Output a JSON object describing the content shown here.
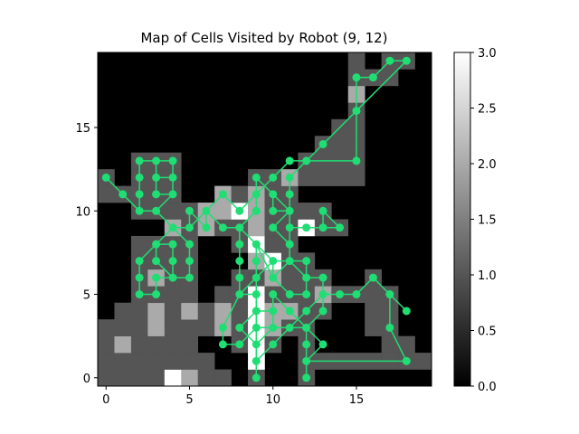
{
  "chart_data": {
    "type": "heatmap",
    "title": "Map of Cells Visited by Robot (9, 12)",
    "xlabel": "",
    "ylabel": "",
    "grid": false,
    "colormap": "gray",
    "grid_size": [
      20,
      20
    ],
    "xlim": [
      -0.5,
      19.5
    ],
    "ylim": [
      -0.5,
      19.5
    ],
    "x_ticks": [
      0,
      5,
      10,
      15
    ],
    "y_ticks": [
      0,
      5,
      10,
      15
    ],
    "x_tick_labels": [
      "0",
      "5",
      "10",
      "15"
    ],
    "y_tick_labels": [
      "0",
      "5",
      "10",
      "15"
    ],
    "colorbar": {
      "range": [
        0.0,
        3.0
      ],
      "ticks": [
        0.0,
        0.5,
        1.0,
        1.5,
        2.0,
        2.5,
        3.0
      ],
      "tick_labels": [
        "0.0",
        "0.5",
        "1.0",
        "1.5",
        "2.0",
        "2.5",
        "3.0"
      ]
    },
    "cells": [
      {
        "x": 0,
        "y": 0,
        "v": 1
      },
      {
        "x": 1,
        "y": 0,
        "v": 1
      },
      {
        "x": 2,
        "y": 0,
        "v": 1
      },
      {
        "x": 3,
        "y": 0,
        "v": 1
      },
      {
        "x": 4,
        "y": 0,
        "v": 3
      },
      {
        "x": 5,
        "y": 0,
        "v": 2
      },
      {
        "x": 6,
        "y": 0,
        "v": 1
      },
      {
        "x": 7,
        "y": 0,
        "v": 1
      },
      {
        "x": 9,
        "y": 0,
        "v": 1
      },
      {
        "x": 12,
        "y": 0,
        "v": 1
      },
      {
        "x": 0,
        "y": 1,
        "v": 1
      },
      {
        "x": 1,
        "y": 1,
        "v": 1
      },
      {
        "x": 2,
        "y": 1,
        "v": 1
      },
      {
        "x": 3,
        "y": 1,
        "v": 1
      },
      {
        "x": 4,
        "y": 1,
        "v": 1
      },
      {
        "x": 5,
        "y": 1,
        "v": 1
      },
      {
        "x": 6,
        "y": 1,
        "v": 1
      },
      {
        "x": 9,
        "y": 1,
        "v": 3
      },
      {
        "x": 12,
        "y": 1,
        "v": 1
      },
      {
        "x": 13,
        "y": 1,
        "v": 1
      },
      {
        "x": 14,
        "y": 1,
        "v": 1
      },
      {
        "x": 15,
        "y": 1,
        "v": 1
      },
      {
        "x": 16,
        "y": 1,
        "v": 1
      },
      {
        "x": 17,
        "y": 1,
        "v": 1
      },
      {
        "x": 18,
        "y": 1,
        "v": 1
      },
      {
        "x": 19,
        "y": 1,
        "v": 1
      },
      {
        "x": 0,
        "y": 2,
        "v": 1
      },
      {
        "x": 1,
        "y": 2,
        "v": 2
      },
      {
        "x": 2,
        "y": 2,
        "v": 1
      },
      {
        "x": 3,
        "y": 2,
        "v": 1
      },
      {
        "x": 4,
        "y": 2,
        "v": 1
      },
      {
        "x": 5,
        "y": 2,
        "v": 1
      },
      {
        "x": 8,
        "y": 2,
        "v": 1
      },
      {
        "x": 9,
        "y": 2,
        "v": 3
      },
      {
        "x": 10,
        "y": 2,
        "v": 1
      },
      {
        "x": 12,
        "y": 2,
        "v": 1
      },
      {
        "x": 17,
        "y": 2,
        "v": 1
      },
      {
        "x": 18,
        "y": 2,
        "v": 1
      },
      {
        "x": 0,
        "y": 3,
        "v": 1
      },
      {
        "x": 1,
        "y": 3,
        "v": 1
      },
      {
        "x": 2,
        "y": 3,
        "v": 1
      },
      {
        "x": 3,
        "y": 3,
        "v": 2
      },
      {
        "x": 4,
        "y": 3,
        "v": 1
      },
      {
        "x": 5,
        "y": 3,
        "v": 1
      },
      {
        "x": 6,
        "y": 3,
        "v": 1
      },
      {
        "x": 7,
        "y": 3,
        "v": 2
      },
      {
        "x": 8,
        "y": 3,
        "v": 1
      },
      {
        "x": 9,
        "y": 3,
        "v": 3
      },
      {
        "x": 10,
        "y": 3,
        "v": 2
      },
      {
        "x": 11,
        "y": 3,
        "v": 1
      },
      {
        "x": 12,
        "y": 3,
        "v": 1
      },
      {
        "x": 16,
        "y": 3,
        "v": 1
      },
      {
        "x": 17,
        "y": 3,
        "v": 1
      },
      {
        "x": 1,
        "y": 4,
        "v": 1
      },
      {
        "x": 2,
        "y": 4,
        "v": 1
      },
      {
        "x": 3,
        "y": 4,
        "v": 2
      },
      {
        "x": 4,
        "y": 4,
        "v": 1
      },
      {
        "x": 5,
        "y": 4,
        "v": 2
      },
      {
        "x": 6,
        "y": 4,
        "v": 1
      },
      {
        "x": 7,
        "y": 4,
        "v": 2
      },
      {
        "x": 8,
        "y": 4,
        "v": 1
      },
      {
        "x": 9,
        "y": 4,
        "v": 3
      },
      {
        "x": 10,
        "y": 4,
        "v": 2
      },
      {
        "x": 11,
        "y": 4,
        "v": 2
      },
      {
        "x": 12,
        "y": 4,
        "v": 1
      },
      {
        "x": 13,
        "y": 4,
        "v": 1
      },
      {
        "x": 16,
        "y": 4,
        "v": 1
      },
      {
        "x": 17,
        "y": 4,
        "v": 1
      },
      {
        "x": 2,
        "y": 5,
        "v": 1
      },
      {
        "x": 3,
        "y": 5,
        "v": 1
      },
      {
        "x": 4,
        "y": 5,
        "v": 1
      },
      {
        "x": 5,
        "y": 5,
        "v": 1
      },
      {
        "x": 7,
        "y": 5,
        "v": 1
      },
      {
        "x": 8,
        "y": 5,
        "v": 1
      },
      {
        "x": 9,
        "y": 5,
        "v": 3
      },
      {
        "x": 10,
        "y": 5,
        "v": 1
      },
      {
        "x": 11,
        "y": 5,
        "v": 1
      },
      {
        "x": 12,
        "y": 5,
        "v": 1
      },
      {
        "x": 13,
        "y": 5,
        "v": 2
      },
      {
        "x": 14,
        "y": 5,
        "v": 1
      },
      {
        "x": 15,
        "y": 5,
        "v": 1
      },
      {
        "x": 16,
        "y": 5,
        "v": 1
      },
      {
        "x": 17,
        "y": 5,
        "v": 1
      },
      {
        "x": 2,
        "y": 6,
        "v": 1
      },
      {
        "x": 3,
        "y": 6,
        "v": 2
      },
      {
        "x": 4,
        "y": 6,
        "v": 1
      },
      {
        "x": 5,
        "y": 6,
        "v": 1
      },
      {
        "x": 8,
        "y": 6,
        "v": 1
      },
      {
        "x": 9,
        "y": 6,
        "v": 1
      },
      {
        "x": 10,
        "y": 6,
        "v": 2
      },
      {
        "x": 11,
        "y": 6,
        "v": 1
      },
      {
        "x": 12,
        "y": 6,
        "v": 1
      },
      {
        "x": 13,
        "y": 6,
        "v": 1
      },
      {
        "x": 16,
        "y": 6,
        "v": 1
      },
      {
        "x": 2,
        "y": 7,
        "v": 1
      },
      {
        "x": 3,
        "y": 7,
        "v": 1
      },
      {
        "x": 4,
        "y": 7,
        "v": 1
      },
      {
        "x": 5,
        "y": 7,
        "v": 1
      },
      {
        "x": 9,
        "y": 7,
        "v": 2
      },
      {
        "x": 10,
        "y": 7,
        "v": 3
      },
      {
        "x": 11,
        "y": 7,
        "v": 1
      },
      {
        "x": 12,
        "y": 7,
        "v": 1
      },
      {
        "x": 2,
        "y": 8,
        "v": 1
      },
      {
        "x": 3,
        "y": 8,
        "v": 1
      },
      {
        "x": 4,
        "y": 8,
        "v": 1
      },
      {
        "x": 5,
        "y": 8,
        "v": 1
      },
      {
        "x": 8,
        "y": 8,
        "v": 1
      },
      {
        "x": 9,
        "y": 8,
        "v": 3
      },
      {
        "x": 10,
        "y": 8,
        "v": 1
      },
      {
        "x": 11,
        "y": 8,
        "v": 1
      },
      {
        "x": 4,
        "y": 9,
        "v": 2
      },
      {
        "x": 5,
        "y": 9,
        "v": 1
      },
      {
        "x": 6,
        "y": 9,
        "v": 2
      },
      {
        "x": 7,
        "y": 9,
        "v": 1
      },
      {
        "x": 8,
        "y": 9,
        "v": 1
      },
      {
        "x": 9,
        "y": 9,
        "v": 2
      },
      {
        "x": 10,
        "y": 9,
        "v": 1
      },
      {
        "x": 11,
        "y": 9,
        "v": 1
      },
      {
        "x": 12,
        "y": 9,
        "v": 3
      },
      {
        "x": 13,
        "y": 9,
        "v": 1
      },
      {
        "x": 14,
        "y": 9,
        "v": 1
      },
      {
        "x": 2,
        "y": 10,
        "v": 1
      },
      {
        "x": 3,
        "y": 10,
        "v": 1
      },
      {
        "x": 4,
        "y": 10,
        "v": 1
      },
      {
        "x": 5,
        "y": 10,
        "v": 1
      },
      {
        "x": 6,
        "y": 10,
        "v": 2
      },
      {
        "x": 7,
        "y": 10,
        "v": 2
      },
      {
        "x": 8,
        "y": 10,
        "v": 3
      },
      {
        "x": 9,
        "y": 10,
        "v": 2
      },
      {
        "x": 10,
        "y": 10,
        "v": 1
      },
      {
        "x": 11,
        "y": 10,
        "v": 1
      },
      {
        "x": 12,
        "y": 10,
        "v": 1
      },
      {
        "x": 13,
        "y": 10,
        "v": 1
      },
      {
        "x": 0,
        "y": 11,
        "v": 1
      },
      {
        "x": 1,
        "y": 11,
        "v": 1
      },
      {
        "x": 2,
        "y": 11,
        "v": 1
      },
      {
        "x": 3,
        "y": 11,
        "v": 1
      },
      {
        "x": 4,
        "y": 11,
        "v": 1
      },
      {
        "x": 7,
        "y": 11,
        "v": 2
      },
      {
        "x": 8,
        "y": 11,
        "v": 1
      },
      {
        "x": 9,
        "y": 11,
        "v": 2
      },
      {
        "x": 10,
        "y": 11,
        "v": 1
      },
      {
        "x": 11,
        "y": 11,
        "v": 1
      },
      {
        "x": 0,
        "y": 12,
        "v": 1
      },
      {
        "x": 2,
        "y": 12,
        "v": 1
      },
      {
        "x": 3,
        "y": 12,
        "v": 1
      },
      {
        "x": 4,
        "y": 12,
        "v": 1
      },
      {
        "x": 9,
        "y": 12,
        "v": 1
      },
      {
        "x": 10,
        "y": 12,
        "v": 1
      },
      {
        "x": 11,
        "y": 12,
        "v": 2
      },
      {
        "x": 12,
        "y": 12,
        "v": 1
      },
      {
        "x": 13,
        "y": 12,
        "v": 1
      },
      {
        "x": 14,
        "y": 12,
        "v": 1
      },
      {
        "x": 15,
        "y": 12,
        "v": 1
      },
      {
        "x": 2,
        "y": 13,
        "v": 1
      },
      {
        "x": 3,
        "y": 13,
        "v": 1
      },
      {
        "x": 4,
        "y": 13,
        "v": 1
      },
      {
        "x": 12,
        "y": 13,
        "v": 1
      },
      {
        "x": 13,
        "y": 13,
        "v": 1
      },
      {
        "x": 14,
        "y": 13,
        "v": 1
      },
      {
        "x": 15,
        "y": 13,
        "v": 1
      },
      {
        "x": 13,
        "y": 14,
        "v": 1
      },
      {
        "x": 14,
        "y": 14,
        "v": 1
      },
      {
        "x": 15,
        "y": 14,
        "v": 1
      },
      {
        "x": 14,
        "y": 15,
        "v": 1
      },
      {
        "x": 15,
        "y": 15,
        "v": 1
      },
      {
        "x": 15,
        "y": 16,
        "v": 1
      },
      {
        "x": 15,
        "y": 17,
        "v": 2
      },
      {
        "x": 15,
        "y": 18,
        "v": 1
      },
      {
        "x": 16,
        "y": 18,
        "v": 1
      },
      {
        "x": 17,
        "y": 18,
        "v": 1
      },
      {
        "x": 15,
        "y": 19,
        "v": 1
      },
      {
        "x": 17,
        "y": 19,
        "v": 1
      },
      {
        "x": 18,
        "y": 19,
        "v": 1
      }
    ],
    "path_color": "#1fde73",
    "path": [
      [
        9,
        12
      ],
      [
        10,
        11
      ],
      [
        11,
        10
      ],
      [
        10,
        9
      ],
      [
        11,
        8
      ],
      [
        11,
        7
      ],
      [
        10,
        6
      ],
      [
        10,
        7
      ],
      [
        9,
        8
      ],
      [
        9,
        7
      ],
      [
        9,
        6
      ],
      [
        8,
        5
      ],
      [
        9,
        5
      ],
      [
        9,
        4
      ],
      [
        8,
        3
      ],
      [
        9,
        2
      ],
      [
        10,
        3
      ],
      [
        10,
        4
      ],
      [
        10,
        5
      ],
      [
        11,
        4
      ],
      [
        12,
        3
      ],
      [
        12,
        2
      ],
      [
        12,
        1
      ],
      [
        12,
        0
      ],
      [
        12,
        1
      ],
      [
        12,
        2
      ],
      [
        12,
        3
      ],
      [
        13,
        4
      ],
      [
        13,
        5
      ],
      [
        14,
        5
      ],
      [
        15,
        5
      ],
      [
        16,
        6
      ],
      [
        17,
        5
      ],
      [
        18,
        4
      ],
      [
        17,
        5
      ],
      [
        17,
        3
      ],
      [
        18,
        1
      ],
      [
        12,
        1
      ],
      [
        13,
        2
      ],
      [
        12,
        3
      ],
      [
        11,
        3
      ],
      [
        10,
        2
      ],
      [
        9,
        1
      ],
      [
        9,
        0
      ],
      [
        9,
        1
      ],
      [
        9,
        2
      ],
      [
        9,
        3
      ],
      [
        9,
        4
      ],
      [
        10,
        4
      ],
      [
        10,
        3
      ],
      [
        9,
        3
      ],
      [
        8,
        2
      ],
      [
        7,
        2
      ],
      [
        7,
        3
      ],
      [
        8,
        5
      ],
      [
        8,
        6
      ],
      [
        8,
        7
      ],
      [
        8,
        8
      ],
      [
        8,
        9
      ],
      [
        9,
        10
      ],
      [
        9,
        11
      ],
      [
        10,
        12
      ],
      [
        11,
        13
      ],
      [
        12,
        13
      ],
      [
        15,
        13
      ],
      [
        15,
        18
      ],
      [
        16,
        18
      ],
      [
        17,
        19
      ],
      [
        18,
        19
      ],
      [
        15,
        16
      ],
      [
        13,
        14
      ],
      [
        11,
        12
      ],
      [
        11,
        11
      ],
      [
        11,
        10
      ],
      [
        11,
        9
      ],
      [
        12,
        9
      ],
      [
        13,
        9
      ],
      [
        14,
        9
      ],
      [
        13,
        10
      ],
      [
        13,
        9
      ],
      [
        12,
        9
      ],
      [
        11,
        9
      ],
      [
        11,
        8
      ],
      [
        11,
        7
      ],
      [
        12,
        7
      ],
      [
        12,
        6
      ],
      [
        13,
        6
      ],
      [
        13,
        5
      ],
      [
        12,
        4
      ],
      [
        11,
        3
      ],
      [
        10,
        3
      ],
      [
        10,
        4
      ],
      [
        9,
        4
      ],
      [
        9,
        5
      ],
      [
        9,
        6
      ],
      [
        10,
        7
      ],
      [
        11,
        7
      ],
      [
        12,
        6
      ],
      [
        12,
        5
      ],
      [
        11,
        5
      ],
      [
        10,
        6
      ],
      [
        9,
        8
      ],
      [
        8,
        9
      ],
      [
        7,
        9
      ],
      [
        6,
        10
      ],
      [
        6,
        9
      ],
      [
        5,
        10
      ],
      [
        5,
        9
      ],
      [
        4,
        9
      ],
      [
        3,
        10
      ],
      [
        4,
        11
      ],
      [
        4,
        12
      ],
      [
        3,
        12
      ],
      [
        3,
        13
      ],
      [
        4,
        13
      ],
      [
        4,
        12
      ],
      [
        4,
        11
      ],
      [
        3,
        11
      ],
      [
        3,
        12
      ],
      [
        3,
        13
      ],
      [
        2,
        13
      ],
      [
        2,
        12
      ],
      [
        2,
        11
      ],
      [
        2,
        10
      ],
      [
        1,
        11
      ],
      [
        0,
        12
      ],
      [
        1,
        11
      ],
      [
        2,
        10
      ],
      [
        3,
        10
      ],
      [
        4,
        9
      ],
      [
        5,
        8
      ],
      [
        5,
        7
      ],
      [
        5,
        6
      ],
      [
        4,
        6
      ],
      [
        3,
        7
      ],
      [
        3,
        8
      ],
      [
        4,
        8
      ],
      [
        4,
        7
      ],
      [
        4,
        6
      ],
      [
        3,
        6
      ],
      [
        3,
        5
      ],
      [
        2,
        5
      ],
      [
        2,
        6
      ],
      [
        2,
        7
      ],
      [
        3,
        8
      ],
      [
        4,
        9
      ],
      [
        5,
        9
      ],
      [
        6,
        10
      ],
      [
        7,
        11
      ],
      [
        8,
        10
      ],
      [
        9,
        11
      ],
      [
        9,
        12
      ],
      [
        10,
        11
      ],
      [
        10,
        10
      ],
      [
        11,
        10
      ]
    ]
  }
}
